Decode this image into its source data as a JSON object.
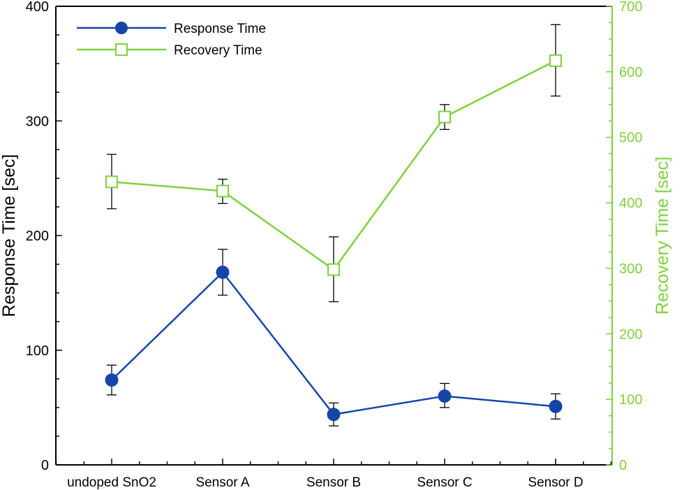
{
  "chart_data": {
    "type": "line",
    "title": "",
    "categories": [
      "undoped SnO2",
      "Sensor A",
      "Sensor B",
      "Sensor C",
      "Sensor D"
    ],
    "xlabel": "",
    "ylabel_left": "Response Time [sec]",
    "ylabel_right": "Recovery Time [sec]",
    "ylim_left": [
      0,
      400
    ],
    "ylim_right": [
      0,
      700
    ],
    "yticks_left": [
      0,
      100,
      200,
      300,
      400
    ],
    "yticks_right": [
      0,
      100,
      200,
      300,
      400,
      500,
      600,
      700
    ],
    "grid": false,
    "legend_position": "top-left",
    "series": [
      {
        "name": "Response Time",
        "axis": "left",
        "color": "#1645A8",
        "marker": "filled-circle",
        "values": [
          74,
          168,
          44,
          60,
          51
        ],
        "error_low": [
          61,
          148,
          34,
          50,
          40
        ],
        "error_high": [
          87,
          188,
          54,
          71,
          62
        ]
      },
      {
        "name": "Recovery Time",
        "axis": "right",
        "color": "#7FD13B",
        "marker": "open-square",
        "values": [
          432,
          418,
          298,
          531,
          617
        ],
        "error_low": [
          391,
          399,
          249,
          512,
          563
        ],
        "error_high": [
          474,
          436,
          348,
          550,
          672
        ]
      }
    ],
    "axis_colors": {
      "left": "#000000",
      "right": "#7FD13B",
      "error_bars": "#000000"
    }
  }
}
